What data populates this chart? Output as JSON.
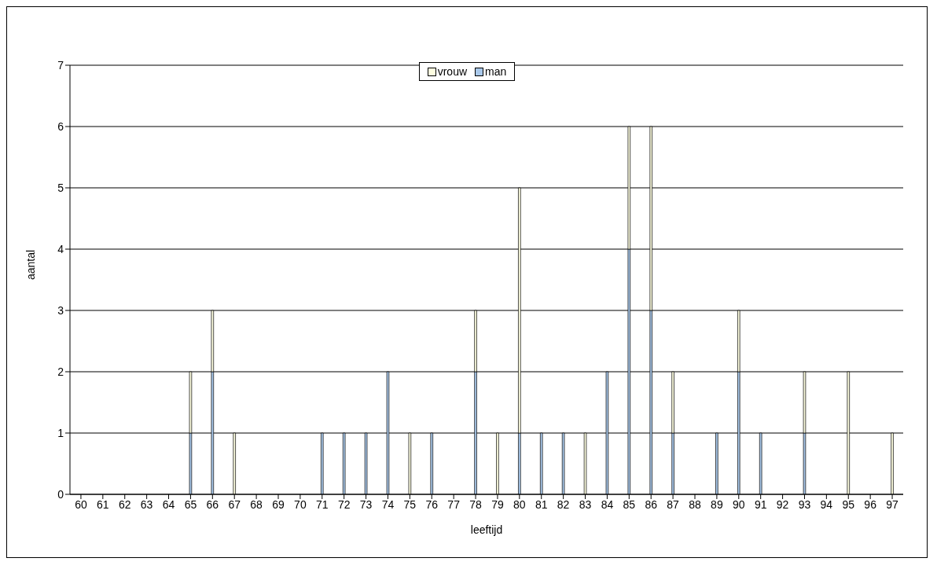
{
  "chart_data": {
    "type": "bar",
    "stacked": true,
    "xlabel": "leeftijd",
    "ylabel": "aantal",
    "categories": [
      "60",
      "61",
      "62",
      "63",
      "64",
      "65",
      "66",
      "67",
      "68",
      "69",
      "70",
      "71",
      "72",
      "73",
      "74",
      "75",
      "76",
      "77",
      "78",
      "79",
      "80",
      "81",
      "82",
      "83",
      "84",
      "85",
      "86",
      "87",
      "88",
      "89",
      "90",
      "91",
      "92",
      "93",
      "94",
      "95",
      "96",
      "97"
    ],
    "series": [
      {
        "name": "man",
        "color": "#a9c8ea",
        "values": [
          0,
          0,
          0,
          0,
          0,
          1,
          2,
          0,
          0,
          0,
          0,
          1,
          1,
          1,
          2,
          0,
          1,
          0,
          2,
          0,
          1,
          1,
          1,
          0,
          2,
          4,
          3,
          1,
          0,
          1,
          2,
          1,
          0,
          1,
          0,
          0,
          0,
          0
        ]
      },
      {
        "name": "vrouw",
        "color": "#fdfde0",
        "values": [
          0,
          0,
          0,
          0,
          0,
          1,
          1,
          1,
          0,
          0,
          0,
          0,
          0,
          0,
          0,
          1,
          0,
          0,
          1,
          1,
          4,
          0,
          0,
          1,
          0,
          2,
          3,
          1,
          0,
          0,
          1,
          0,
          0,
          1,
          0,
          2,
          0,
          1
        ]
      }
    ],
    "ylim": [
      0,
      7
    ],
    "yticks": [
      0,
      1,
      2,
      3,
      4,
      5,
      6,
      7
    ],
    "grid": "y",
    "legend": "top"
  }
}
